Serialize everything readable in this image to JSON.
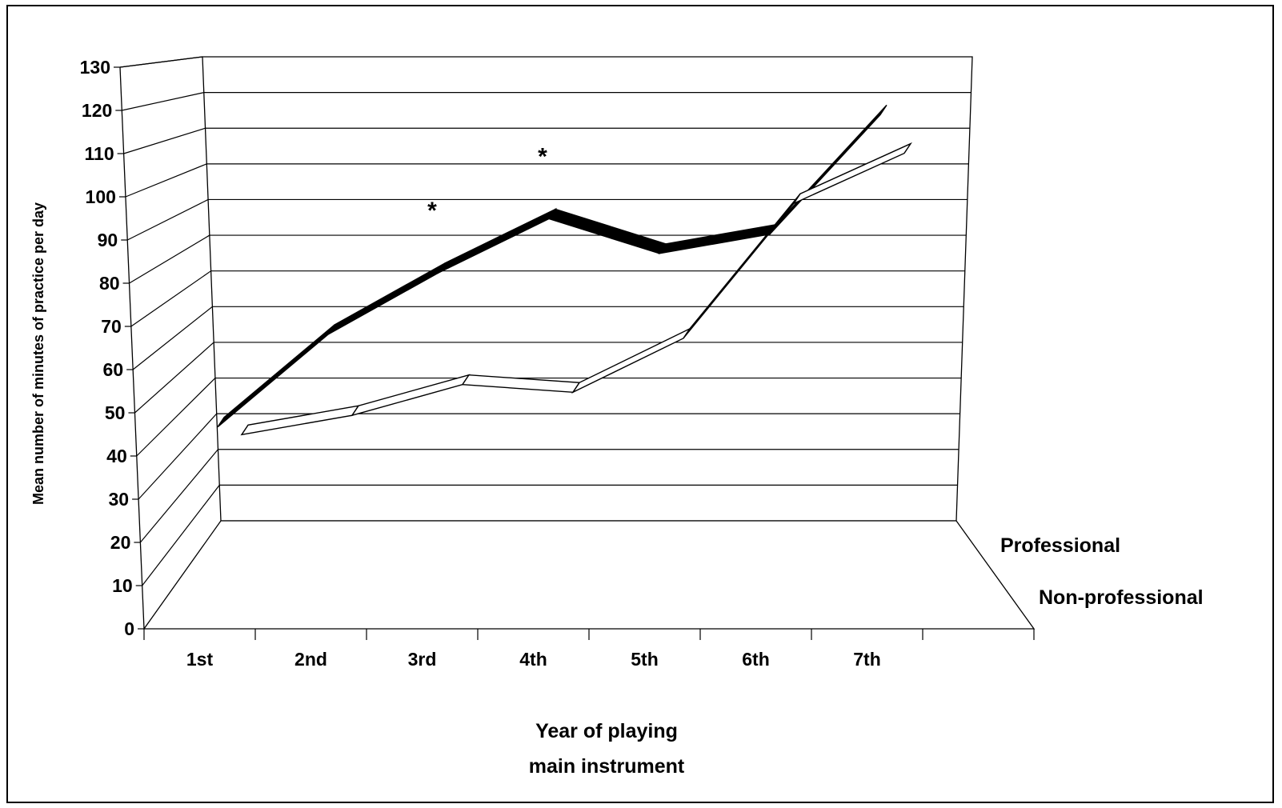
{
  "chart_data": {
    "type": "line",
    "style": "3d-ribbon",
    "categories": [
      "1st",
      "2nd",
      "3rd",
      "4th",
      "5th",
      "6th",
      "7th"
    ],
    "series": [
      {
        "name": "Professional",
        "values": [
          35,
          59,
          75,
          89,
          80,
          85,
          116
        ],
        "color": "#000000"
      },
      {
        "name": "Non-professional",
        "values": [
          33,
          38,
          46,
          44,
          58,
          93,
          106
        ],
        "color": "#ffffff"
      }
    ],
    "annotations": [
      {
        "text": "*",
        "category": "3rd"
      },
      {
        "text": "*",
        "category": "4th"
      }
    ],
    "xlabel": [
      "Year of playing",
      "main instrument"
    ],
    "ylabel": "Mean number of minutes of practice per day",
    "ylim": [
      0,
      130
    ],
    "yticks": [
      "0",
      "10",
      "20",
      "30",
      "40",
      "50",
      "60",
      "70",
      "80",
      "90",
      "100",
      "110",
      "120",
      "130"
    ],
    "grid": true
  }
}
